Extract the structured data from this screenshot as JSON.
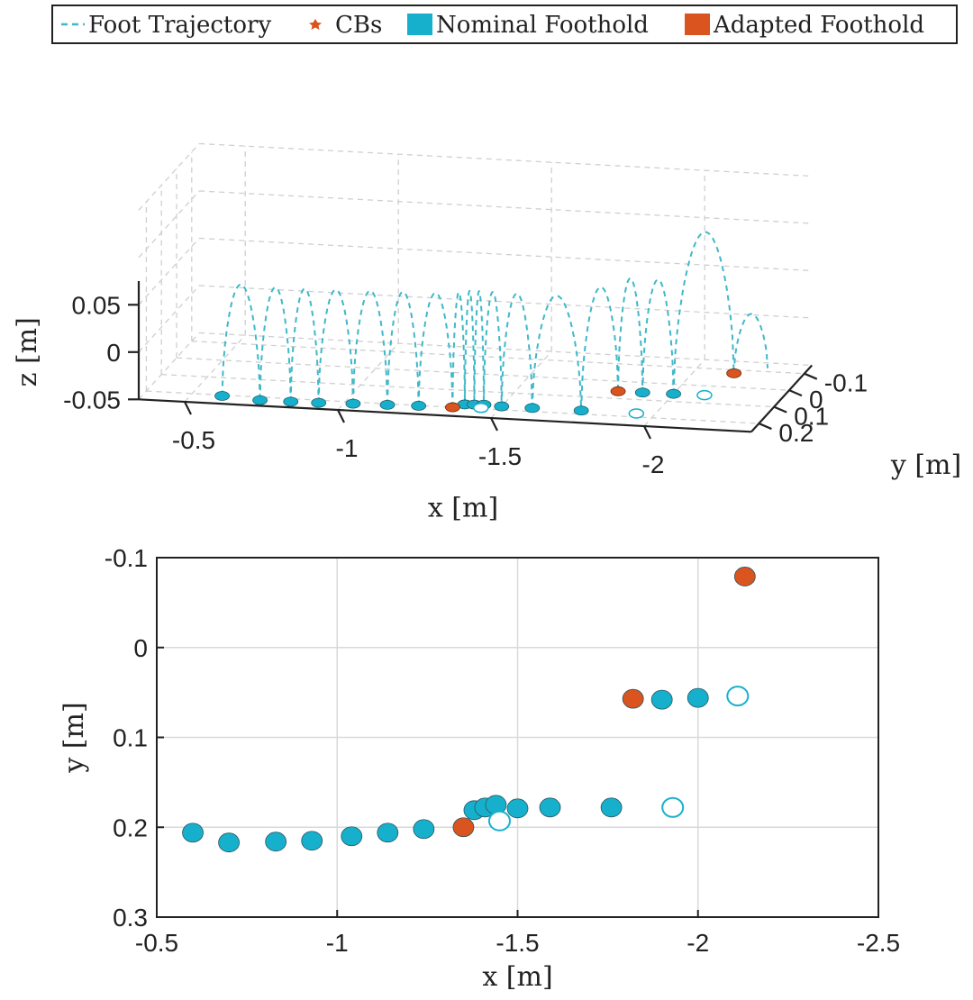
{
  "legend": {
    "entries": [
      {
        "label": "Foot Trajectory",
        "marker": "dashed-line",
        "color": "#3fb8c8"
      },
      {
        "label": "CBs",
        "marker": "star",
        "color": "#d9541e"
      },
      {
        "label": "Nominal Foothold",
        "marker": "filled-square",
        "color": "#17b0cc"
      },
      {
        "label": "Adapted Foothold",
        "marker": "filled-square",
        "color": "#d9541e"
      }
    ]
  },
  "colors": {
    "nominal": "#17b0cc",
    "adapted": "#d9541e",
    "trajectory": "#3fb8c8",
    "grid": "#d9d9d9"
  },
  "chart_data": [
    {
      "type": "line",
      "projection": "3d",
      "xlabel": "x [m]",
      "ylabel": "y [m]",
      "zlabel": "z [m]",
      "xlim": [
        -0.4,
        -2.3
      ],
      "ylim": [
        -0.15,
        0.25
      ],
      "zlim": [
        -0.05,
        0.15
      ],
      "x_ticks": [
        "-0.5",
        "-1",
        "-1.5",
        "-2"
      ],
      "x_tick_values": [
        -0.5,
        -1,
        -1.5,
        -2
      ],
      "y_ticks": [
        "-0.1",
        "0",
        "0.1",
        "0.2"
      ],
      "y_tick_values": [
        -0.1,
        0,
        0.1,
        0.2
      ],
      "z_ticks": [
        "0.05",
        "0",
        "-0.05"
      ],
      "z_tick_values": [
        0.05,
        0,
        -0.05
      ],
      "grid": true,
      "series": [
        {
          "name": "Foot Trajectory",
          "style": "dashed",
          "segments": [
            {
              "from": [
                -0.6,
                0.205
              ],
              "to": [
                -0.73,
                0.218
              ],
              "height": 0.12
            },
            {
              "from": [
                -0.73,
                0.218
              ],
              "to": [
                -0.83,
                0.217
              ],
              "height": 0.12
            },
            {
              "from": [
                -0.83,
                0.217
              ],
              "to": [
                -0.92,
                0.215
              ],
              "height": 0.12
            },
            {
              "from": [
                -0.92,
                0.215
              ],
              "to": [
                -1.03,
                0.21
              ],
              "height": 0.12
            },
            {
              "from": [
                -1.03,
                0.21
              ],
              "to": [
                -1.14,
                0.206
              ],
              "height": 0.12
            },
            {
              "from": [
                -1.14,
                0.206
              ],
              "to": [
                -1.24,
                0.202
              ],
              "height": 0.12
            },
            {
              "from": [
                -1.24,
                0.202
              ],
              "to": [
                -1.35,
                0.2
              ],
              "height": 0.12
            },
            {
              "from": [
                -1.35,
                0.2
              ],
              "to": [
                -1.38,
                0.18
              ],
              "height": 0.12
            },
            {
              "from": [
                -1.38,
                0.18
              ],
              "to": [
                -1.41,
                0.178
              ],
              "height": 0.12
            },
            {
              "from": [
                -1.41,
                0.178
              ],
              "to": [
                -1.44,
                0.176
              ],
              "height": 0.12
            },
            {
              "from": [
                -1.44,
                0.176
              ],
              "to": [
                -1.5,
                0.18
              ],
              "height": 0.12
            },
            {
              "from": [
                -1.5,
                0.18
              ],
              "to": [
                -1.6,
                0.18
              ],
              "height": 0.12
            },
            {
              "from": [
                -1.6,
                0.18
              ],
              "to": [
                -1.76,
                0.18
              ],
              "height": 0.12
            },
            {
              "from": [
                -1.76,
                0.18
              ],
              "to": [
                -1.82,
                0.058
              ],
              "height": 0.12
            },
            {
              "from": [
                -1.82,
                0.058
              ],
              "to": [
                -1.9,
                0.058
              ],
              "height": 0.12
            },
            {
              "from": [
                -1.9,
                0.058
              ],
              "to": [
                -2.0,
                0.056
              ],
              "height": 0.12
            },
            {
              "from": [
                -2.0,
                0.056
              ],
              "to": [
                -2.13,
                -0.08
              ],
              "height": 0.16
            },
            {
              "from": [
                -2.13,
                -0.08
              ],
              "to": [
                -2.22,
                -0.12
              ],
              "height": 0.06
            }
          ]
        }
      ],
      "footholds_nominal": [
        [
          -0.6,
          0.205
        ],
        [
          -0.73,
          0.218
        ],
        [
          -0.83,
          0.217
        ],
        [
          -0.92,
          0.215
        ],
        [
          -1.03,
          0.21
        ],
        [
          -1.14,
          0.206
        ],
        [
          -1.24,
          0.202
        ],
        [
          -1.38,
          0.18
        ],
        [
          -1.41,
          0.178
        ],
        [
          -1.44,
          0.176
        ],
        [
          -1.5,
          0.18
        ],
        [
          -1.6,
          0.18
        ],
        [
          -1.76,
          0.18
        ],
        [
          -1.9,
          0.058
        ],
        [
          -2.0,
          0.056
        ]
      ],
      "footholds_adapted": [
        [
          -1.35,
          0.2
        ],
        [
          -1.82,
          0.058
        ],
        [
          -2.13,
          -0.08
        ]
      ],
      "footholds_open": [
        [
          -1.44,
          0.195
        ],
        [
          -1.94,
          0.18
        ],
        [
          -2.1,
          0.054
        ]
      ]
    },
    {
      "type": "scatter",
      "xlabel": "x [m]",
      "ylabel": "y [m]",
      "xlim": [
        -0.5,
        -2.5
      ],
      "ylim": [
        -0.1,
        0.3
      ],
      "x_ticks": [
        "-0.5",
        "-1",
        "-1.5",
        "-2",
        "-2.5"
      ],
      "x_tick_values": [
        -0.5,
        -1,
        -1.5,
        -2,
        -2.5
      ],
      "y_ticks": [
        "-0.1",
        "0",
        "0.1",
        "0.2",
        "0.3"
      ],
      "y_tick_values": [
        -0.1,
        0,
        0.1,
        0.2,
        0.3
      ],
      "y_reversed": true,
      "grid": true,
      "series": [
        {
          "name": "Nominal Foothold",
          "fill": "nominal",
          "points": [
            [
              -0.6,
              0.206
            ],
            [
              -0.7,
              0.217
            ],
            [
              -0.83,
              0.216
            ],
            [
              -0.93,
              0.215
            ],
            [
              -1.04,
              0.21
            ],
            [
              -1.14,
              0.206
            ],
            [
              -1.24,
              0.202
            ],
            [
              -1.38,
              0.181
            ],
            [
              -1.41,
              0.178
            ],
            [
              -1.44,
              0.175
            ],
            [
              -1.5,
              0.179
            ],
            [
              -1.59,
              0.178
            ],
            [
              -1.76,
              0.178
            ],
            [
              -1.9,
              0.058
            ],
            [
              -2.0,
              0.056
            ]
          ]
        },
        {
          "name": "Adapted Foothold",
          "fill": "adapted",
          "points": [
            [
              -1.35,
              0.2
            ],
            [
              -1.82,
              0.057
            ],
            [
              -2.13,
              -0.079
            ]
          ]
        },
        {
          "fill": "none",
          "stroke": "nominal",
          "points": [
            [
              -1.45,
              0.193
            ],
            [
              -1.93,
              0.178
            ],
            [
              -2.11,
              0.054
            ]
          ]
        }
      ]
    }
  ]
}
